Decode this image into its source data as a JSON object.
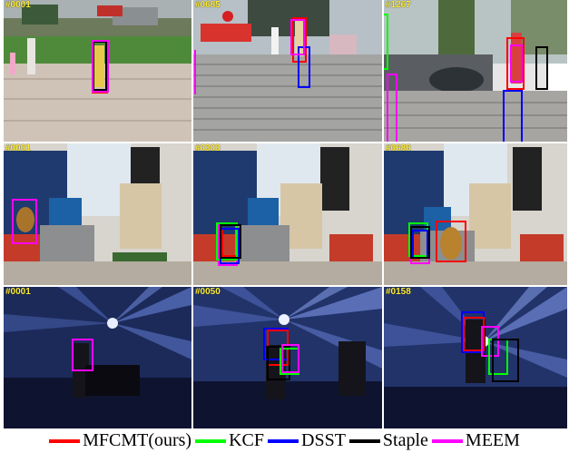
{
  "frames": {
    "row1": [
      "#0001",
      "#0685",
      "#1267"
    ],
    "row2": [
      "#0001",
      "#0303",
      "#0688"
    ],
    "row3": [
      "#0001",
      "#0050",
      "#0158"
    ]
  },
  "legend": [
    {
      "label": "MFCMT(ours)",
      "color": "#ff0000"
    },
    {
      "label": "KCF",
      "color": "#00ff00"
    },
    {
      "label": "DSST",
      "color": "#0000ff"
    },
    {
      "label": "Staple",
      "color": "#000000"
    },
    {
      "label": "MEEM",
      "color": "#ff00ff"
    }
  ],
  "colors": {
    "mfcmt": "#ff0000",
    "kcf": "#00ff00",
    "dsst": "#0000ff",
    "staple": "#000000",
    "meem": "#ff00ff",
    "frame_label": "#ffee33"
  }
}
